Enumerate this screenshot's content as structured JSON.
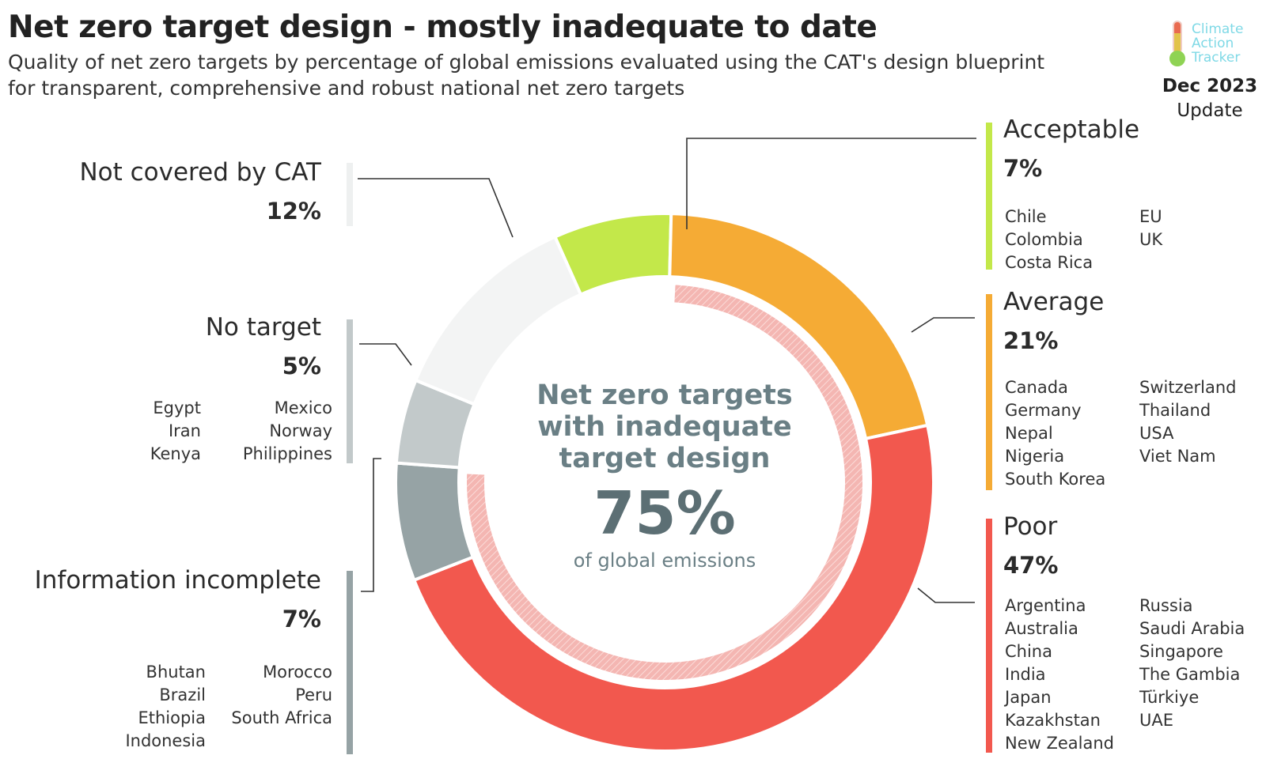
{
  "header": {
    "title": "Net zero target design - mostly inadequate to date",
    "subtitle": "Quality of net zero targets by percentage of global emissions evaluated using the CAT's design blueprint for transparent, comprehensive and robust national net zero targets"
  },
  "logo": {
    "line1": "Climate",
    "line2": "Action",
    "line3": "Tracker",
    "icon": "thermometer-icon"
  },
  "update": {
    "month": "Dec 2023",
    "label": "Update"
  },
  "center": {
    "headline_1": "Net zero targets",
    "headline_2": "with inadequate",
    "headline_3": "target design",
    "value": "75%",
    "caption": "of global emissions"
  },
  "categories": {
    "acceptable": {
      "name": "Acceptable",
      "pct": "7%",
      "col1": [
        "Chile",
        "Colombia",
        "Costa Rica"
      ],
      "col2": [
        "EU",
        "UK"
      ]
    },
    "average": {
      "name": "Average",
      "pct": "21%",
      "col1": [
        "Canada",
        "Germany",
        "Nepal",
        "Nigeria",
        "South Korea"
      ],
      "col2": [
        "Switzerland",
        "Thailand",
        "USA",
        "Viet Nam"
      ]
    },
    "poor": {
      "name": "Poor",
      "pct": "47%",
      "col1": [
        "Argentina",
        "Australia",
        "China",
        "India",
        "Japan",
        "Kazakhstan",
        "New Zealand"
      ],
      "col2": [
        "Russia",
        "Saudi Arabia",
        "Singapore",
        "The Gambia",
        "Türkiye",
        "UAE"
      ]
    },
    "not_covered": {
      "name": "Not covered by CAT",
      "pct": "12%"
    },
    "no_target": {
      "name": "No target",
      "pct": "5%",
      "col1": [
        "Egypt",
        "Iran",
        "Kenya"
      ],
      "col2": [
        "Mexico",
        "Norway",
        "Philippines"
      ]
    },
    "incomplete": {
      "name": "Information incomplete",
      "pct": "7%",
      "col1": [
        "Bhutan",
        "Brazil",
        "Ethiopia",
        "Indonesia"
      ],
      "col2": [
        "Morocco",
        "Peru",
        "South Africa"
      ]
    }
  },
  "chart_data": {
    "type": "pie",
    "categories": [
      "Acceptable",
      "Average",
      "Poor",
      "Information incomplete",
      "No target",
      "Not covered by CAT"
    ],
    "values": [
      7,
      21,
      47,
      7,
      5,
      12
    ],
    "unit": "% of global emissions",
    "colors": [
      "#c3e84a",
      "#f5ab35",
      "#f2584e",
      "#96a3a5",
      "#c2c9ca",
      "#f3f4f4"
    ],
    "inner_ring": {
      "label": "Net zero targets with inadequate target design",
      "value": 75,
      "color": "#f4b6b2"
    }
  }
}
